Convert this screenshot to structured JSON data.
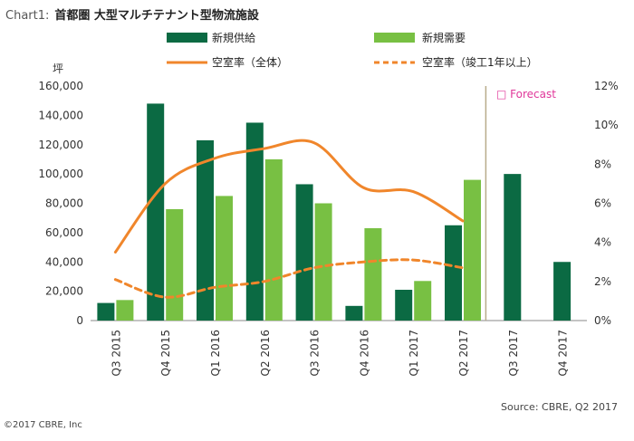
{
  "title": {
    "prefix": "Chart1:",
    "main": "首都圏 大型マルチテナント型物流施設"
  },
  "source": "Source: CBRE, Q2 2017",
  "copyright": "©2017 CBRE, Inc",
  "forecast_label": "□ Forecast",
  "chart_data": {
    "type": "bar",
    "categories": [
      "Q3 2015",
      "Q4 2015",
      "Q1 2016",
      "Q2 2016",
      "Q3 2016",
      "Q4 2016",
      "Q1 2017",
      "Q2 2017",
      "Q3 2017",
      "Q4 2017"
    ],
    "left_axis": {
      "label": "坪",
      "ylim": [
        0,
        160000
      ],
      "ticks": [
        "0",
        "20,000",
        "40,000",
        "60,000",
        "80,000",
        "100,000",
        "120,000",
        "140,000",
        "160,000"
      ]
    },
    "right_axis": {
      "ylim": [
        0,
        12
      ],
      "ticks": [
        "0%",
        "2%",
        "4%",
        "6%",
        "8%",
        "10%",
        "12%"
      ]
    },
    "series": [
      {
        "name": "新規供給",
        "type": "bar",
        "axis": "left",
        "color": "#0b6a43",
        "values": [
          12000,
          148000,
          123000,
          135000,
          93000,
          10000,
          21000,
          65000,
          100000,
          40000
        ]
      },
      {
        "name": "新規需要",
        "type": "bar",
        "axis": "left",
        "color": "#78c043",
        "values": [
          14000,
          76000,
          85000,
          110000,
          80000,
          63000,
          27000,
          96000,
          null,
          null
        ]
      },
      {
        "name": "空室率（全体）",
        "type": "line",
        "axis": "right",
        "color": "#f0862b",
        "dash": false,
        "values": [
          3.5,
          7.0,
          8.3,
          8.8,
          9.1,
          6.8,
          6.6,
          5.1,
          null,
          null
        ]
      },
      {
        "name": "空室率（竣工1年以上）",
        "type": "line",
        "axis": "right",
        "color": "#f0862b",
        "dash": true,
        "values": [
          2.1,
          1.2,
          1.7,
          2.0,
          2.7,
          3.0,
          3.1,
          2.7,
          null,
          null
        ]
      }
    ],
    "forecast_from_index": 8,
    "grid": false
  }
}
